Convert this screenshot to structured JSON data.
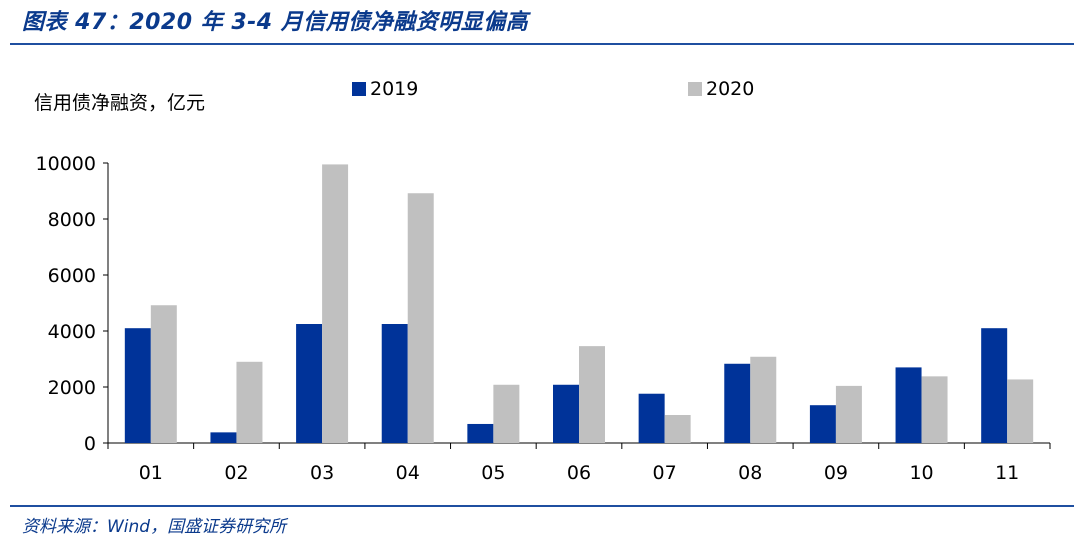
{
  "figure": {
    "title": "图表 47：2020 年 3-4 月信用债净融资明显偏高",
    "source": "资料来源：Wind，国盛证券研究所"
  },
  "chart_data": {
    "type": "bar",
    "title": "图表 47：2020 年 3-4 月信用债净融资明显偏高",
    "ylabel": "信用债净融资，亿元",
    "xlabel": "",
    "categories": [
      "01",
      "02",
      "03",
      "04",
      "05",
      "06",
      "07",
      "08",
      "09",
      "10",
      "11"
    ],
    "series": [
      {
        "name": "2019",
        "color": "#003399",
        "values": [
          4100,
          380,
          4250,
          4250,
          680,
          2080,
          1760,
          2830,
          1350,
          2700,
          4100
        ]
      },
      {
        "name": "2020",
        "color": "#c0c0c0",
        "values": [
          4920,
          2900,
          9950,
          8920,
          2080,
          3460,
          1000,
          3080,
          2040,
          2380,
          2270
        ]
      }
    ],
    "ylim": [
      0,
      10000
    ],
    "yticks": [
      "0",
      "2000",
      "4000",
      "6000",
      "8000",
      "10000"
    ],
    "legend_position": "top",
    "grid": false
  }
}
